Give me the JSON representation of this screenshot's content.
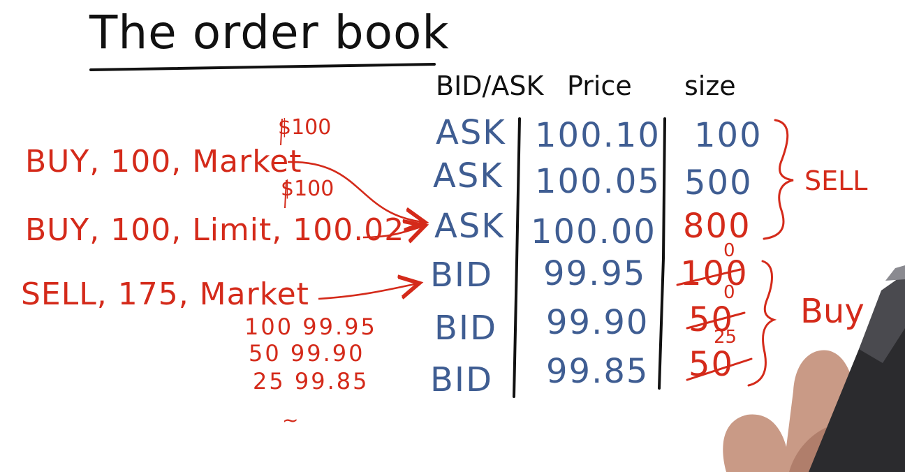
{
  "title": "The order book",
  "headers": {
    "side": "BID/ASK",
    "price": "Price",
    "size": "size"
  },
  "rows": [
    {
      "side": "ASK",
      "price": "100.10",
      "size": "100"
    },
    {
      "side": "ASK",
      "price": "100.05",
      "size": "500"
    },
    {
      "side": "ASK",
      "price": "100.00",
      "size": "800"
    },
    {
      "side": "BID",
      "price": "99.95",
      "size": "100",
      "new_size": "0"
    },
    {
      "side": "BID",
      "price": "99.90",
      "size": "50",
      "new_size": "0"
    },
    {
      "side": "BID",
      "price": "99.85",
      "size": "50",
      "new_size": "25"
    }
  ],
  "group_labels": {
    "sell": "SELL",
    "buy": "Buy"
  },
  "orders": [
    {
      "text": "BUY, 100, Market",
      "note": "$100"
    },
    {
      "text": "BUY, 100, Limit, 100.02",
      "note": "$100"
    },
    {
      "text": "SELL, 175, Market"
    }
  ],
  "fills": [
    {
      "qty": "100",
      "price": "99.95"
    },
    {
      "qty": "50",
      "price": "99.90"
    },
    {
      "qty": "25",
      "price": "99.85"
    }
  ],
  "tilde": "~",
  "colors": {
    "ink_black": "#111111",
    "ink_blue": "#3f5d92",
    "ink_red": "#d42a1a"
  }
}
